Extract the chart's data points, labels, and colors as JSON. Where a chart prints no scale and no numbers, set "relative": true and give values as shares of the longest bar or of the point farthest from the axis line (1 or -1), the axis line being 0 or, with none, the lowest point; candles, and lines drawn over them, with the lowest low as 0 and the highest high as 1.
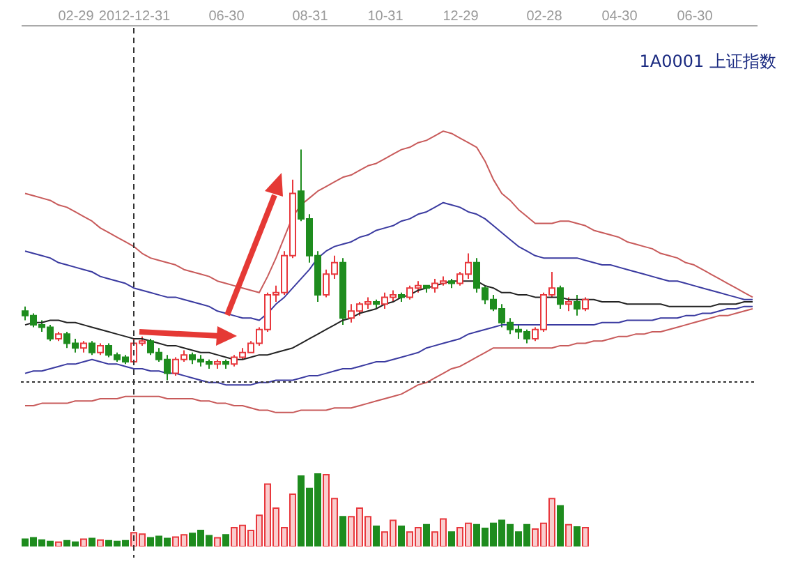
{
  "chart_data": [
    {
      "type": "candlestick",
      "relative": true,
      "annotations": [
        "1A0001  上证指数"
      ],
      "categories": [
        null,
        null,
        null,
        null,
        null,
        null,
        "02-29",
        null,
        null,
        null,
        null,
        null,
        null,
        "2012-12-31",
        null,
        null,
        null,
        null,
        null,
        null,
        null,
        null,
        null,
        null,
        "06-30",
        null,
        null,
        null,
        null,
        null,
        null,
        null,
        null,
        null,
        "08-31",
        null,
        null,
        null,
        null,
        null,
        null,
        null,
        null,
        "10-31",
        null,
        null,
        null,
        null,
        null,
        null,
        null,
        null,
        "12-29",
        null,
        null,
        null,
        null,
        null,
        null,
        null,
        null,
        null,
        "02-28",
        null,
        null,
        null,
        null,
        null,
        null,
        null,
        null,
        "04-30",
        null,
        null,
        null,
        null,
        null,
        null,
        null,
        null,
        "06-30",
        null,
        null,
        null,
        null,
        null,
        null,
        null
      ],
      "ohlc": [
        [
          0.3,
          0.32,
          0.26,
          0.28
        ],
        [
          0.28,
          0.29,
          0.23,
          0.24
        ],
        [
          0.24,
          0.26,
          0.21,
          0.23
        ],
        [
          0.23,
          0.24,
          0.17,
          0.18
        ],
        [
          0.18,
          0.21,
          0.17,
          0.2
        ],
        [
          0.2,
          0.21,
          0.14,
          0.16
        ],
        [
          0.16,
          0.18,
          0.12,
          0.14
        ],
        [
          0.14,
          0.17,
          0.12,
          0.16
        ],
        [
          0.16,
          0.17,
          0.11,
          0.12
        ],
        [
          0.12,
          0.16,
          0.11,
          0.15
        ],
        [
          0.15,
          0.16,
          0.1,
          0.11
        ],
        [
          0.11,
          0.12,
          0.08,
          0.09
        ],
        [
          0.1,
          0.11,
          0.07,
          0.08
        ],
        [
          0.08,
          0.18,
          0.07,
          0.16
        ],
        [
          0.16,
          0.19,
          0.15,
          0.17
        ],
        [
          0.17,
          0.18,
          0.11,
          0.12
        ],
        [
          0.12,
          0.14,
          0.08,
          0.09
        ],
        [
          0.09,
          0.11,
          0,
          0.03
        ],
        [
          0.03,
          0.1,
          0.02,
          0.09
        ],
        [
          0.09,
          0.13,
          0.08,
          0.11
        ],
        [
          0.11,
          0.12,
          0.07,
          0.09
        ],
        [
          0.09,
          0.11,
          0.06,
          0.08
        ],
        [
          0.08,
          0.09,
          0.05,
          0.07
        ],
        [
          0.07,
          0.09,
          0.05,
          0.08
        ],
        [
          0.08,
          0.09,
          0.05,
          0.07
        ],
        [
          0.07,
          0.11,
          0.06,
          0.1
        ],
        [
          0.1,
          0.14,
          0.09,
          0.12
        ],
        [
          0.12,
          0.17,
          0.12,
          0.16
        ],
        [
          0.16,
          0.23,
          0.15,
          0.22
        ],
        [
          0.22,
          0.38,
          0.21,
          0.37
        ],
        [
          0.37,
          0.41,
          0.34,
          0.38
        ],
        [
          0.38,
          0.56,
          0.37,
          0.54
        ],
        [
          0.54,
          0.87,
          0.53,
          0.81
        ],
        [
          0.82,
          1,
          0.69,
          0.7
        ],
        [
          0.7,
          0.72,
          0.51,
          0.54
        ],
        [
          0.54,
          0.56,
          0.34,
          0.37
        ],
        [
          0.37,
          0.48,
          0.36,
          0.46
        ],
        [
          0.46,
          0.54,
          0.44,
          0.51
        ],
        [
          0.51,
          0.53,
          0.24,
          0.27
        ],
        [
          0.27,
          0.33,
          0.25,
          0.3
        ],
        [
          0.3,
          0.34,
          0.28,
          0.33
        ],
        [
          0.33,
          0.36,
          0.31,
          0.34
        ],
        [
          0.34,
          0.35,
          0.31,
          0.33
        ],
        [
          0.33,
          0.38,
          0.31,
          0.36
        ],
        [
          0.36,
          0.39,
          0.34,
          0.37
        ],
        [
          0.37,
          0.38,
          0.34,
          0.36
        ],
        [
          0.36,
          0.41,
          0.35,
          0.4
        ],
        [
          0.4,
          0.43,
          0.38,
          0.41
        ],
        [
          0.41,
          0.41,
          0.38,
          0.4
        ],
        [
          0.4,
          0.44,
          0.38,
          0.42
        ],
        [
          0.42,
          0.45,
          0.41,
          0.43
        ],
        [
          0.43,
          0.44,
          0.4,
          0.42
        ],
        [
          0.42,
          0.47,
          0.41,
          0.46
        ],
        [
          0.46,
          0.55,
          0.44,
          0.51
        ],
        [
          0.51,
          0.53,
          0.38,
          0.4
        ],
        [
          0.4,
          0.41,
          0.33,
          0.35
        ],
        [
          0.35,
          0.37,
          0.3,
          0.31
        ],
        [
          0.31,
          0.33,
          0.23,
          0.25
        ],
        [
          0.25,
          0.27,
          0.2,
          0.22
        ],
        [
          0.22,
          0.24,
          0.18,
          0.21
        ],
        [
          0.21,
          0.22,
          0.16,
          0.18
        ],
        [
          0.18,
          0.23,
          0.17,
          0.22
        ],
        [
          0.22,
          0.38,
          0.21,
          0.37
        ],
        [
          0.37,
          0.47,
          0.36,
          0.4
        ],
        [
          0.4,
          0.41,
          0.31,
          0.33
        ],
        [
          0.33,
          0.36,
          0.3,
          0.34
        ],
        [
          0.34,
          0.37,
          0.28,
          0.31
        ],
        [
          0.31,
          0.36,
          0.3,
          0.35
        ],
        null,
        null,
        null,
        null,
        null,
        null,
        null,
        null,
        null,
        null,
        null,
        null,
        null,
        null,
        null,
        null,
        null,
        null,
        null,
        null
      ],
      "colors": [
        "#1e8c1e",
        "#1e8c1e",
        "#1e8c1e",
        "#1e8c1e",
        "#e8383d",
        "#1e8c1e",
        "#1e8c1e",
        "#e8383d",
        "#1e8c1e",
        "#e8383d",
        "#1e8c1e",
        "#1e8c1e",
        "#1e8c1e",
        "#e8383d",
        "#e8383d",
        "#1e8c1e",
        "#1e8c1e",
        "#1e8c1e",
        "#e8383d",
        "#e8383d",
        "#1e8c1e",
        "#1e8c1e",
        "#1e8c1e",
        "#e8383d",
        "#1e8c1e",
        "#e8383d",
        "#e8383d",
        "#e8383d",
        "#e8383d",
        "#e8383d",
        "#e8383d",
        "#e8383d",
        "#e8383d",
        "#1e8c1e",
        "#1e8c1e",
        "#1e8c1e",
        "#e8383d",
        "#e8383d",
        "#1e8c1e",
        "#e8383d",
        "#e8383d",
        "#e8383d",
        "#1e8c1e",
        "#e8383d",
        "#e8383d",
        "#1e8c1e",
        "#e8383d",
        "#e8383d",
        "#1e8c1e",
        "#e8383d",
        "#e8383d",
        "#1e8c1e",
        "#e8383d",
        "#e8383d",
        "#1e8c1e",
        "#1e8c1e",
        "#1e8c1e",
        "#1e8c1e",
        "#1e8c1e",
        "#1e8c1e",
        "#1e8c1e",
        "#e8383d",
        "#e8383d",
        "#e8383d",
        "#1e8c1e",
        "#e8383d",
        "#1e8c1e",
        "#e8383d",
        null,
        null,
        null,
        null,
        null,
        null,
        null,
        null,
        null,
        null,
        null,
        null,
        null,
        null,
        null,
        null,
        null,
        null,
        null,
        null
      ],
      "series": [
        {
          "type": "line",
          "color": "#c85a5a",
          "values": [
            0.81,
            0.8,
            0.79,
            0.78,
            0.76,
            0.75,
            0.73,
            0.71,
            0.69,
            0.66,
            0.64,
            0.62,
            0.6,
            0.58,
            0.55,
            0.53,
            0.52,
            0.51,
            0.5,
            0.48,
            0.47,
            0.46,
            0.45,
            0.43,
            0.42,
            0.41,
            0.4,
            0.39,
            0.38,
            0.45,
            0.53,
            0.62,
            0.71,
            0.76,
            0.79,
            0.82,
            0.84,
            0.86,
            0.88,
            0.89,
            0.91,
            0.93,
            0.94,
            0.96,
            0.98,
            1.0,
            1.01,
            1.03,
            1.04,
            1.06,
            1.08,
            1.07,
            1.05,
            1.03,
            1.01,
            0.95,
            0.87,
            0.81,
            0.78,
            0.74,
            0.71,
            0.68,
            0.68,
            0.68,
            0.69,
            0.69,
            0.68,
            0.67,
            0.65,
            0.64,
            0.63,
            0.62,
            0.6,
            0.59,
            0.58,
            0.57,
            0.55,
            0.54,
            0.53,
            0.51,
            0.5,
            0.48,
            0.46,
            0.44,
            0.42,
            0.4,
            0.38,
            0.36
          ]
        },
        {
          "type": "line",
          "color": "#3a3aa0",
          "values": [
            0.56,
            0.55,
            0.54,
            0.53,
            0.51,
            0.5,
            0.49,
            0.48,
            0.47,
            0.45,
            0.44,
            0.43,
            0.42,
            0.4,
            0.39,
            0.38,
            0.37,
            0.36,
            0.36,
            0.35,
            0.34,
            0.33,
            0.32,
            0.3,
            0.29,
            0.28,
            0.27,
            0.27,
            0.26,
            0.29,
            0.33,
            0.36,
            0.4,
            0.44,
            0.48,
            0.53,
            0.56,
            0.58,
            0.59,
            0.6,
            0.62,
            0.63,
            0.65,
            0.66,
            0.67,
            0.69,
            0.7,
            0.72,
            0.73,
            0.75,
            0.77,
            0.76,
            0.75,
            0.73,
            0.72,
            0.7,
            0.67,
            0.64,
            0.61,
            0.58,
            0.56,
            0.54,
            0.53,
            0.53,
            0.53,
            0.53,
            0.53,
            0.52,
            0.51,
            0.5,
            0.5,
            0.49,
            0.48,
            0.47,
            0.46,
            0.45,
            0.44,
            0.43,
            0.43,
            0.42,
            0.41,
            0.4,
            0.39,
            0.38,
            0.37,
            0.36,
            0.35,
            0.35
          ]
        },
        {
          "type": "line",
          "color": "#222222",
          "values": [
            0.24,
            0.25,
            0.25,
            0.26,
            0.26,
            0.25,
            0.25,
            0.24,
            0.23,
            0.22,
            0.21,
            0.2,
            0.19,
            0.18,
            0.18,
            0.17,
            0.16,
            0.15,
            0.15,
            0.14,
            0.13,
            0.12,
            0.12,
            0.11,
            0.1,
            0.09,
            0.09,
            0.1,
            0.11,
            0.11,
            0.12,
            0.13,
            0.14,
            0.16,
            0.18,
            0.2,
            0.22,
            0.24,
            0.26,
            0.27,
            0.29,
            0.3,
            0.31,
            0.33,
            0.34,
            0.36,
            0.37,
            0.39,
            0.4,
            0.41,
            0.42,
            0.43,
            0.43,
            0.43,
            0.43,
            0.41,
            0.4,
            0.38,
            0.38,
            0.37,
            0.37,
            0.36,
            0.36,
            0.36,
            0.36,
            0.35,
            0.35,
            0.35,
            0.35,
            0.34,
            0.34,
            0.34,
            0.33,
            0.33,
            0.33,
            0.33,
            0.33,
            0.32,
            0.32,
            0.32,
            0.32,
            0.32,
            0.32,
            0.33,
            0.33,
            0.33,
            0.34,
            0.34
          ]
        },
        {
          "type": "line",
          "color": "#3a3aa0",
          "values": [
            0.03,
            0.04,
            0.04,
            0.05,
            0.06,
            0.07,
            0.07,
            0.08,
            0.09,
            0.08,
            0.07,
            0.07,
            0.06,
            0.05,
            0.05,
            0.04,
            0.04,
            0.03,
            0.03,
            0.02,
            0.01,
            0,
            -0.01,
            -0.01,
            -0.02,
            -0.02,
            -0.02,
            -0.02,
            -0.01,
            -0.01,
            0,
            0,
            0,
            0.01,
            0.02,
            0.02,
            0.03,
            0.04,
            0.05,
            0.05,
            0.06,
            0.07,
            0.08,
            0.08,
            0.09,
            0.1,
            0.11,
            0.12,
            0.14,
            0.15,
            0.16,
            0.17,
            0.18,
            0.2,
            0.21,
            0.22,
            0.23,
            0.24,
            0.24,
            0.24,
            0.24,
            0.24,
            0.24,
            0.24,
            0.24,
            0.24,
            0.24,
            0.24,
            0.24,
            0.25,
            0.25,
            0.25,
            0.26,
            0.26,
            0.26,
            0.26,
            0.27,
            0.27,
            0.27,
            0.28,
            0.28,
            0.29,
            0.29,
            0.3,
            0.31,
            0.31,
            0.32,
            0.32
          ]
        },
        {
          "type": "line",
          "color": "#c85a5a",
          "values": [
            -0.11,
            -0.11,
            -0.1,
            -0.1,
            -0.1,
            -0.1,
            -0.09,
            -0.09,
            -0.09,
            -0.08,
            -0.08,
            -0.08,
            -0.07,
            -0.07,
            -0.07,
            -0.07,
            -0.07,
            -0.08,
            -0.08,
            -0.08,
            -0.08,
            -0.09,
            -0.09,
            -0.1,
            -0.1,
            -0.11,
            -0.11,
            -0.12,
            -0.13,
            -0.13,
            -0.14,
            -0.14,
            -0.14,
            -0.13,
            -0.13,
            -0.13,
            -0.13,
            -0.12,
            -0.12,
            -0.12,
            -0.11,
            -0.1,
            -0.09,
            -0.08,
            -0.07,
            -0.06,
            -0.04,
            -0.02,
            -0.01,
            0.01,
            0.03,
            0.05,
            0.06,
            0.08,
            0.1,
            0.12,
            0.14,
            0.14,
            0.14,
            0.14,
            0.14,
            0.14,
            0.14,
            0.14,
            0.15,
            0.15,
            0.16,
            0.16,
            0.17,
            0.17,
            0.18,
            0.19,
            0.19,
            0.2,
            0.2,
            0.21,
            0.21,
            0.22,
            0.23,
            0.24,
            0.25,
            0.26,
            0.27,
            0.28,
            0.28,
            0.29,
            0.3,
            0.31
          ]
        }
      ]
    },
    {
      "type": "bar",
      "relative": true,
      "categories": [
        null,
        null,
        null,
        null,
        null,
        null,
        null,
        null,
        null,
        null,
        null,
        null,
        null,
        null,
        null,
        null,
        null,
        null,
        null,
        null,
        null,
        null,
        null,
        null,
        null,
        null,
        null,
        null,
        null,
        null,
        null,
        null,
        null,
        null,
        null,
        null,
        null,
        null,
        null,
        null,
        null,
        null,
        null,
        null,
        null,
        null,
        null,
        null,
        null,
        null,
        null,
        null,
        null,
        null,
        null,
        null,
        null,
        null,
        null,
        null,
        null,
        null,
        null,
        null,
        null,
        null,
        null,
        null
      ],
      "values": [
        0.1,
        0.12,
        0.09,
        0.07,
        0.06,
        0.08,
        0.06,
        0.1,
        0.11,
        0.09,
        0.08,
        0.07,
        0.08,
        0.19,
        0.17,
        0.12,
        0.14,
        0.11,
        0.13,
        0.16,
        0.18,
        0.22,
        0.15,
        0.12,
        0.16,
        0.26,
        0.29,
        0.22,
        0.43,
        0.86,
        0.53,
        0.26,
        0.72,
        0.97,
        0.8,
        1,
        0.99,
        0.66,
        0.41,
        0.41,
        0.53,
        0.41,
        0.28,
        0.2,
        0.36,
        0.28,
        0.2,
        0.26,
        0.3,
        0.2,
        0.38,
        0.2,
        0.26,
        0.32,
        0.3,
        0.25,
        0.32,
        0.36,
        0.3,
        0.2,
        0.3,
        0.24,
        0.32,
        0.66,
        0.56,
        0.3,
        0.27,
        0.26
      ],
      "colors": [
        "#1e8c1e",
        "#1e8c1e",
        "#1e8c1e",
        "#1e8c1e",
        "#e8383d",
        "#1e8c1e",
        "#1e8c1e",
        "#e8383d",
        "#1e8c1e",
        "#e8383d",
        "#1e8c1e",
        "#1e8c1e",
        "#1e8c1e",
        "#e8383d",
        "#e8383d",
        "#1e8c1e",
        "#1e8c1e",
        "#1e8c1e",
        "#e8383d",
        "#e8383d",
        "#1e8c1e",
        "#1e8c1e",
        "#1e8c1e",
        "#e8383d",
        "#1e8c1e",
        "#e8383d",
        "#e8383d",
        "#e8383d",
        "#e8383d",
        "#e8383d",
        "#e8383d",
        "#e8383d",
        "#e8383d",
        "#1e8c1e",
        "#1e8c1e",
        "#1e8c1e",
        "#e8383d",
        "#e8383d",
        "#1e8c1e",
        "#e8383d",
        "#e8383d",
        "#e8383d",
        "#1e8c1e",
        "#e8383d",
        "#e8383d",
        "#1e8c1e",
        "#e8383d",
        "#e8383d",
        "#1e8c1e",
        "#e8383d",
        "#e8383d",
        "#1e8c1e",
        "#e8383d",
        "#e8383d",
        "#1e8c1e",
        "#1e8c1e",
        "#1e8c1e",
        "#1e8c1e",
        "#1e8c1e",
        "#1e8c1e",
        "#1e8c1e",
        "#e8383d",
        "#e8383d",
        "#e8383d",
        "#1e8c1e",
        "#e8383d",
        "#1e8c1e",
        "#e8383d"
      ]
    }
  ]
}
